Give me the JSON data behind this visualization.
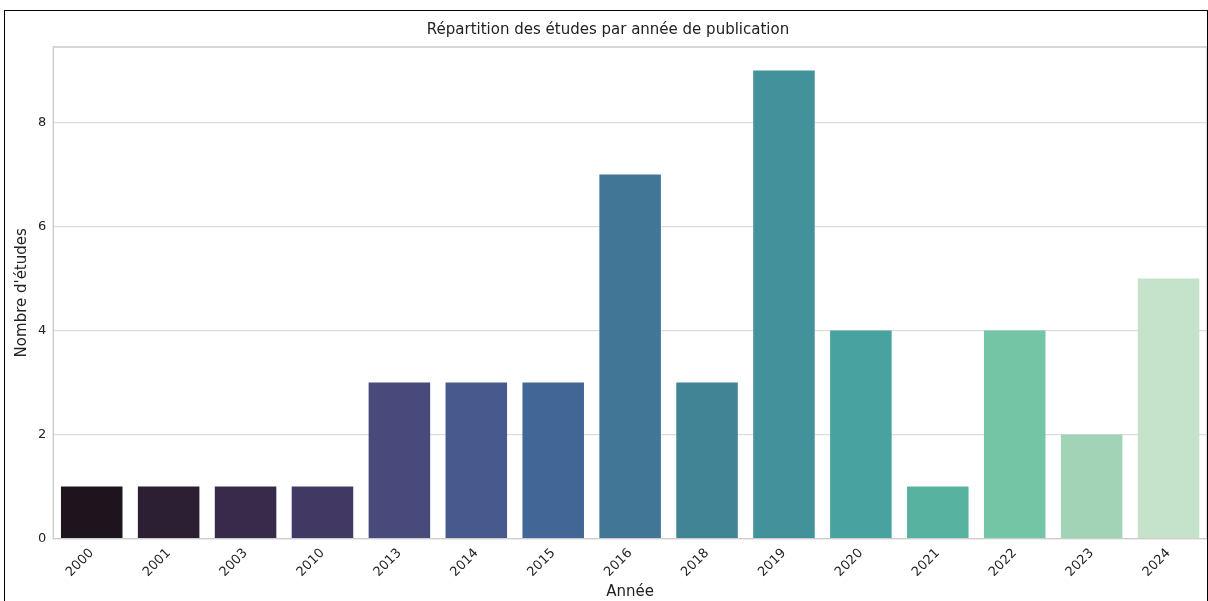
{
  "chart_data": {
    "type": "bar",
    "title": "Répartition des études par année de publication",
    "xlabel": "Année",
    "ylabel": "Nombre d'études",
    "categories": [
      "2000",
      "2001",
      "2003",
      "2010",
      "2013",
      "2014",
      "2015",
      "2016",
      "2018",
      "2019",
      "2020",
      "2021",
      "2022",
      "2023",
      "2024"
    ],
    "values": [
      1,
      1,
      1,
      1,
      3,
      3,
      3,
      7,
      3,
      9,
      4,
      1,
      4,
      2,
      5
    ],
    "colors": [
      "#1e141e",
      "#2c1f33",
      "#372a4a",
      "#413963",
      "#494a7c",
      "#465a8d",
      "#426796",
      "#417696",
      "#418496",
      "#43919a",
      "#48a29f",
      "#57b3a0",
      "#74c4a6",
      "#a1d4b7",
      "#c5e3cb"
    ],
    "ylim": [
      0,
      9.45
    ],
    "yticks": [
      0,
      2,
      4,
      6,
      8
    ],
    "grid": "y"
  }
}
